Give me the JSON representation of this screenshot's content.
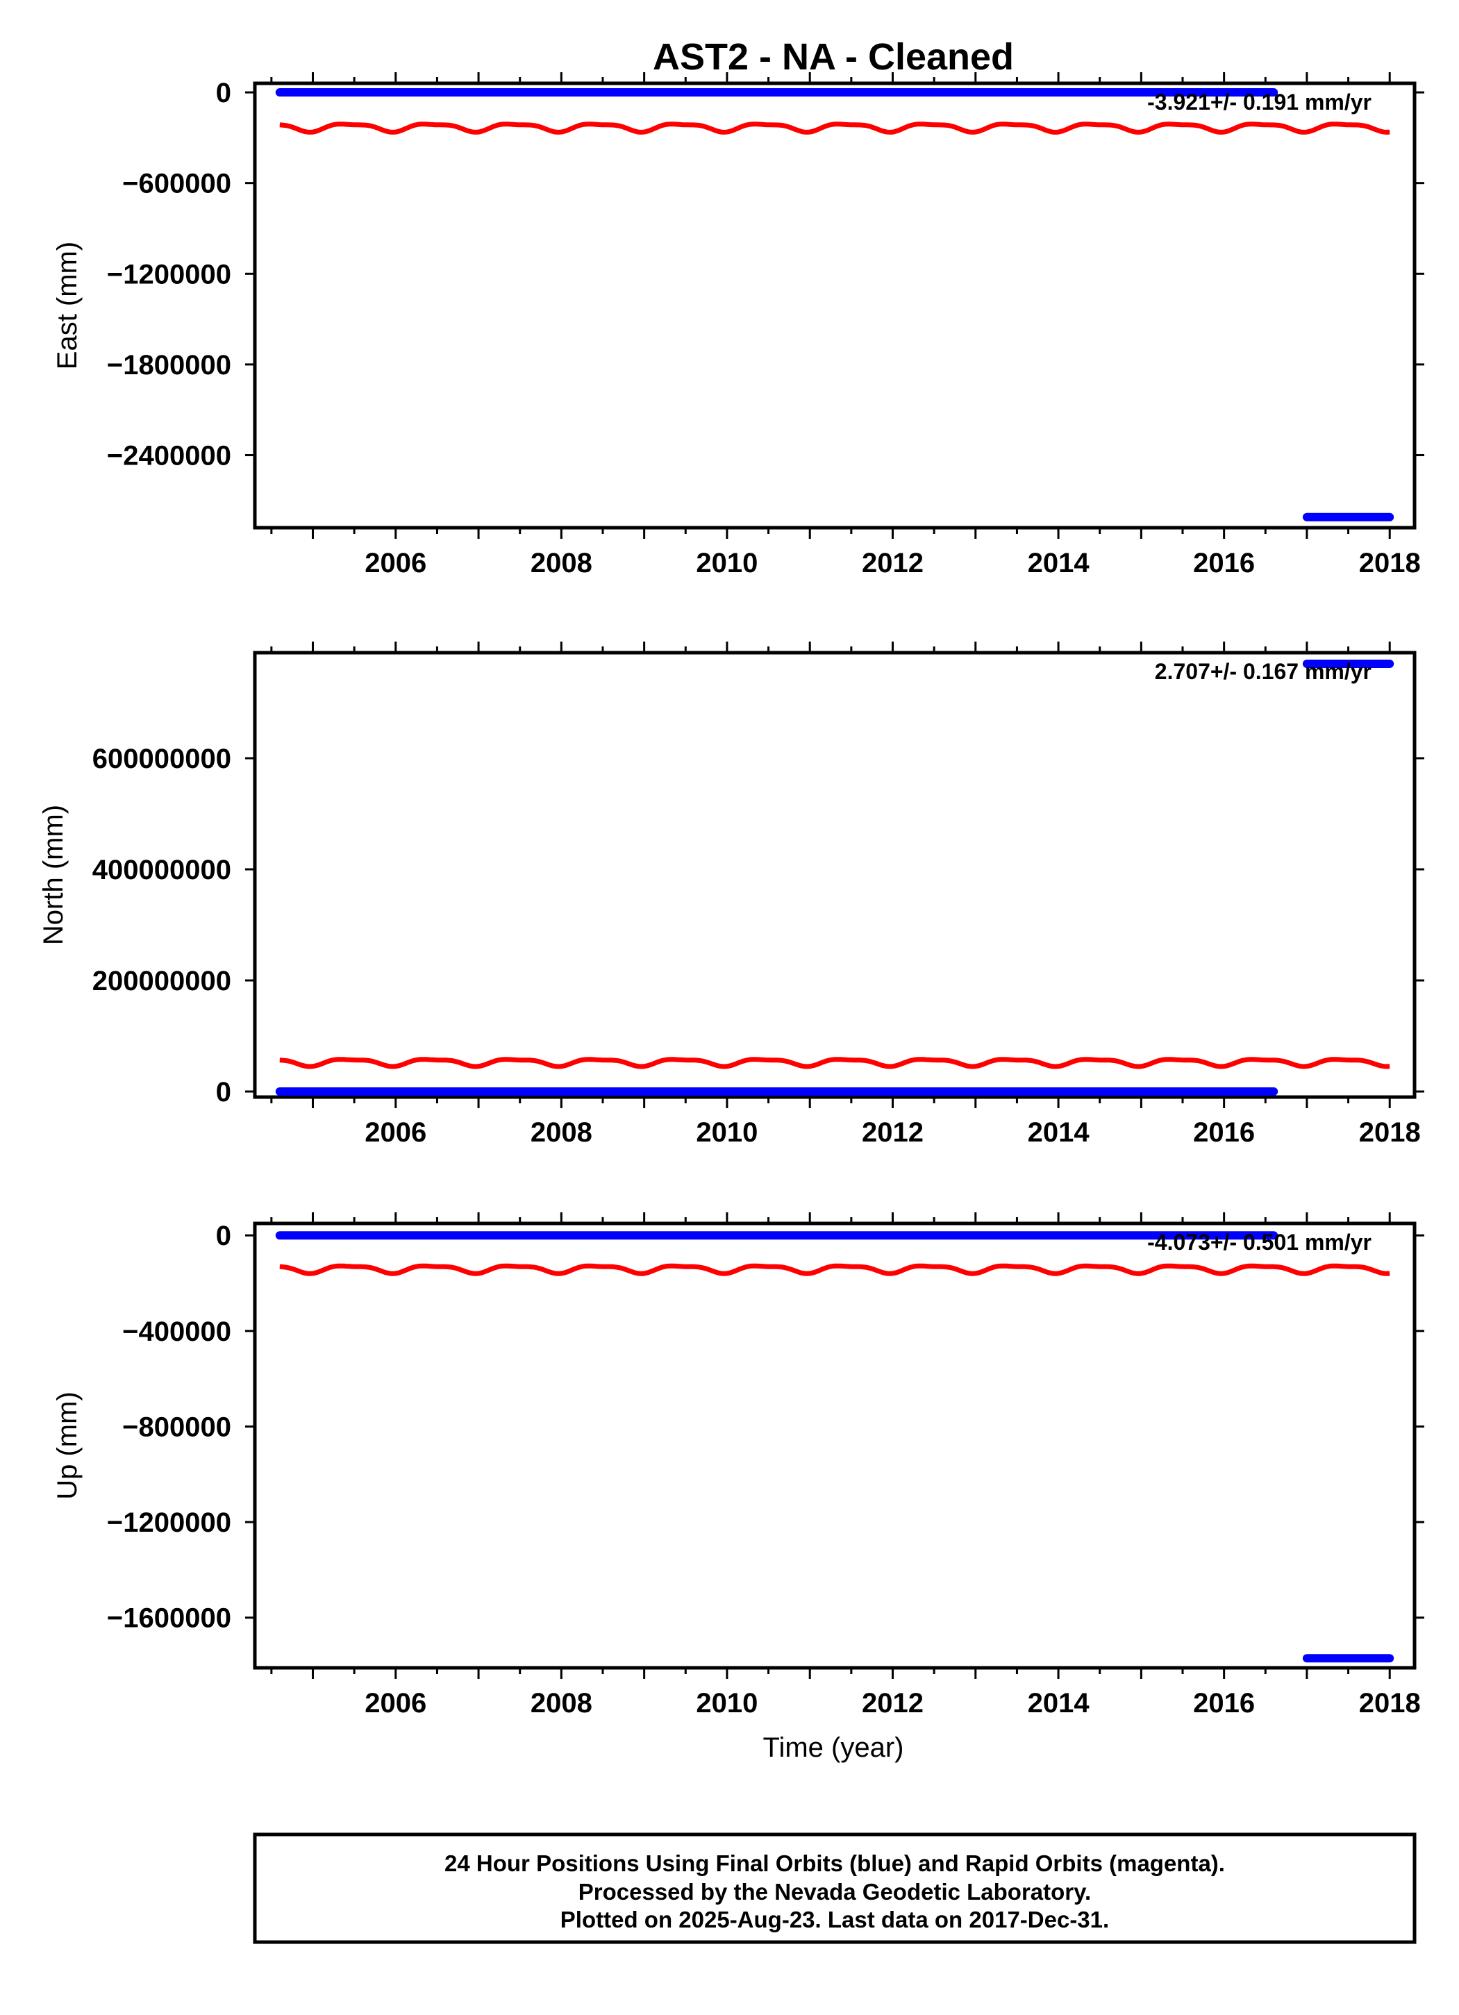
{
  "title": "AST2  - NA - Cleaned",
  "xlabel": "Time (year)",
  "colors": {
    "final": "#0000ff",
    "model": "#ff0000",
    "frame": "#000000"
  },
  "chart_data": [
    {
      "type": "scatter",
      "ylabel": "East (mm)",
      "rate_text": "-3.921+/- 0.191 mm/yr",
      "xlim": [
        2004.3,
        2018.3
      ],
      "ylim": [
        -2880000,
        60000
      ],
      "yticks": [
        0,
        -600000,
        -1200000,
        -1800000,
        -2400000
      ],
      "ytick_labels": [
        "0",
        "−600000",
        "−1200000",
        "−1800000",
        "−2400000"
      ],
      "xticks": [
        2006,
        2008,
        2010,
        2012,
        2014,
        2016,
        2018
      ],
      "xtick_labels": [
        "2006",
        "2008",
        "2010",
        "2012",
        "2014",
        "2016",
        "2018"
      ],
      "series": [
        {
          "color": "#0000ff",
          "x_range": [
            2004.6,
            2016.6
          ],
          "y": 0
        },
        {
          "color": "#0000ff",
          "x_range": [
            2017.0,
            2018.0
          ],
          "y": -2810000
        }
      ],
      "model": {
        "color": "#ff0000",
        "x_range": [
          2004.6,
          2018.0
        ],
        "mean": -230000,
        "amplitude": 25000
      }
    },
    {
      "type": "scatter",
      "ylabel": "North (mm)",
      "rate_text": "2.707+/- 0.167 mm/yr",
      "xlim": [
        2004.3,
        2018.3
      ],
      "ylim": [
        -10000000,
        790000000
      ],
      "yticks": [
        0,
        200000000,
        400000000,
        600000000
      ],
      "ytick_labels": [
        "0",
        "200000000",
        "400000000",
        "600000000"
      ],
      "xticks": [
        2006,
        2008,
        2010,
        2012,
        2014,
        2016,
        2018
      ],
      "xtick_labels": [
        "2006",
        "2008",
        "2010",
        "2012",
        "2014",
        "2016",
        "2018"
      ],
      "series": [
        {
          "color": "#0000ff",
          "x_range": [
            2004.6,
            2016.6
          ],
          "y": 0
        },
        {
          "color": "#0000ff",
          "x_range": [
            2017.0,
            2018.0
          ],
          "y": 770000000
        }
      ],
      "model": {
        "color": "#ff0000",
        "x_range": [
          2004.6,
          2018.0
        ],
        "mean": 53000000,
        "amplitude": 6000000
      }
    },
    {
      "type": "scatter",
      "ylabel": "Up (mm)",
      "rate_text": "-4.073+/- 0.501 mm/yr",
      "xlim": [
        2004.3,
        2018.3
      ],
      "ylim": [
        -1810000,
        50000
      ],
      "yticks": [
        0,
        -400000,
        -800000,
        -1200000,
        -1600000
      ],
      "ytick_labels": [
        "0",
        "−400000",
        "−800000",
        "−1200000",
        "−1600000"
      ],
      "xticks": [
        2006,
        2008,
        2010,
        2012,
        2014,
        2016,
        2018
      ],
      "xtick_labels": [
        "2006",
        "2008",
        "2010",
        "2012",
        "2014",
        "2016",
        "2018"
      ],
      "series": [
        {
          "color": "#0000ff",
          "x_range": [
            2004.6,
            2016.6
          ],
          "y": 0
        },
        {
          "color": "#0000ff",
          "x_range": [
            2017.0,
            2018.0
          ],
          "y": -1770000
        }
      ],
      "model": {
        "color": "#ff0000",
        "x_range": [
          2004.6,
          2018.0
        ],
        "mean": -140000,
        "amplitude": 15000
      }
    }
  ],
  "caption": [
    "24 Hour Positions Using Final Orbits (blue) and Rapid Orbits (magenta).",
    "Processed by the Nevada Geodetic Laboratory.",
    "Plotted on 2025-Aug-23. Last data on 2017-Dec-31."
  ]
}
